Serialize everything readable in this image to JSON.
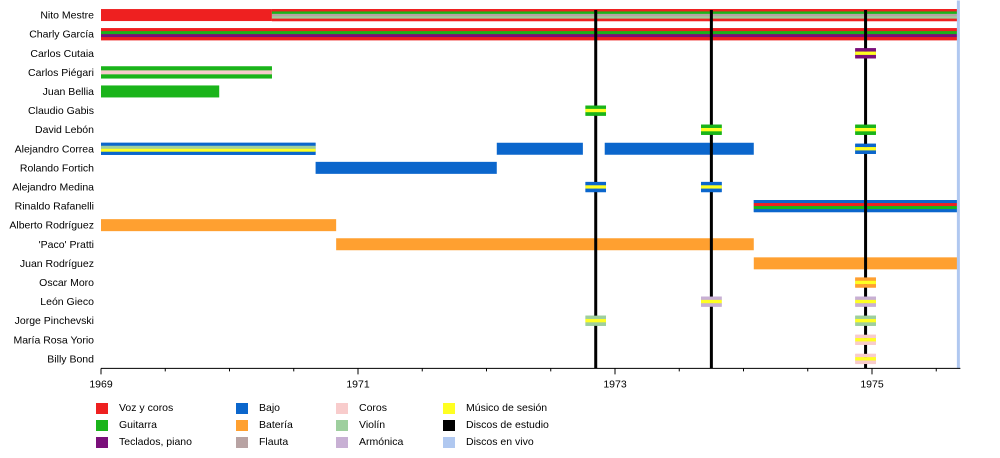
{
  "chart_data": {
    "type": "timeline",
    "x_range": [
      1969.0,
      1975.68
    ],
    "x_ticks": [
      "1969",
      "1971",
      "1973",
      "1975"
    ],
    "colors": {
      "voz": "#ee2020",
      "guitarra": "#1ab41a",
      "teclados": "#7a0f7a",
      "bajo": "#0b66cc",
      "bateria": "#ffa030",
      "flauta": "#b8a3a3",
      "coros": "#f8cccc",
      "violin": "#9ecf9e",
      "armonica": "#c8b0d4",
      "sesion": "#ffff22",
      "estudio": "#000000",
      "vivo": "#b0c8f0"
    },
    "members": [
      {
        "name": "Nito Mestre",
        "spans": [
          {
            "start": 1969.0,
            "end": 1970.33,
            "colors": [
              "voz"
            ]
          },
          {
            "start": 1970.33,
            "end": 1975.68,
            "colors": [
              "voz",
              "guitarra",
              "flauta",
              "violin"
            ]
          }
        ]
      },
      {
        "name": "Charly García",
        "spans": [
          {
            "start": 1969.0,
            "end": 1975.68,
            "colors": [
              "voz",
              "guitarra",
              "teclados"
            ]
          }
        ]
      },
      {
        "name": "Carlos Cutaia",
        "spans": [
          {
            "start": 1974.87,
            "end": 1975.03,
            "colors": [
              "teclados",
              "sesion"
            ]
          }
        ]
      },
      {
        "name": "Carlos Piégari",
        "spans": [
          {
            "start": 1969.0,
            "end": 1970.33,
            "colors": [
              "guitarra",
              "coros"
            ]
          }
        ]
      },
      {
        "name": "Juan Bellia",
        "spans": [
          {
            "start": 1969.0,
            "end": 1969.92,
            "colors": [
              "guitarra"
            ]
          }
        ]
      },
      {
        "name": "Claudio Gabis",
        "spans": [
          {
            "start": 1972.77,
            "end": 1972.93,
            "colors": [
              "guitarra",
              "sesion"
            ]
          }
        ]
      },
      {
        "name": "David Lebón",
        "spans": [
          {
            "start": 1973.67,
            "end": 1973.83,
            "colors": [
              "guitarra",
              "sesion"
            ]
          },
          {
            "start": 1974.87,
            "end": 1975.03,
            "colors": [
              "guitarra",
              "sesion"
            ]
          }
        ]
      },
      {
        "name": "Alejandro Correa",
        "spans": [
          {
            "start": 1969.0,
            "end": 1970.67,
            "colors": [
              "bajo",
              "violin",
              "sesion"
            ]
          },
          {
            "start": 1972.08,
            "end": 1972.75,
            "colors": [
              "bajo"
            ]
          },
          {
            "start": 1972.92,
            "end": 1974.08,
            "colors": [
              "bajo"
            ]
          },
          {
            "start": 1974.87,
            "end": 1975.03,
            "colors": [
              "bajo",
              "sesion"
            ]
          }
        ]
      },
      {
        "name": "Rolando Fortich",
        "spans": [
          {
            "start": 1970.67,
            "end": 1972.08,
            "colors": [
              "bajo"
            ]
          }
        ]
      },
      {
        "name": "Alejandro Medina",
        "spans": [
          {
            "start": 1972.77,
            "end": 1972.93,
            "colors": [
              "bajo",
              "sesion"
            ]
          },
          {
            "start": 1973.67,
            "end": 1973.83,
            "colors": [
              "bajo",
              "sesion"
            ]
          }
        ]
      },
      {
        "name": "Rinaldo Rafanelli",
        "spans": [
          {
            "start": 1974.08,
            "end": 1975.68,
            "colors": [
              "bajo",
              "voz",
              "guitarra"
            ]
          }
        ]
      },
      {
        "name": "Alberto Rodríguez",
        "spans": [
          {
            "start": 1969.0,
            "end": 1970.83,
            "colors": [
              "bateria"
            ]
          }
        ]
      },
      {
        "name": "'Paco' Pratti",
        "spans": [
          {
            "start": 1970.83,
            "end": 1974.08,
            "colors": [
              "bateria"
            ]
          }
        ]
      },
      {
        "name": "Juan Rodríguez",
        "spans": [
          {
            "start": 1974.08,
            "end": 1975.68,
            "colors": [
              "bateria"
            ]
          }
        ]
      },
      {
        "name": "Oscar Moro",
        "spans": [
          {
            "start": 1974.87,
            "end": 1975.03,
            "colors": [
              "bateria",
              "sesion"
            ]
          }
        ]
      },
      {
        "name": "León Gieco",
        "spans": [
          {
            "start": 1973.67,
            "end": 1973.83,
            "colors": [
              "armonica",
              "sesion"
            ]
          },
          {
            "start": 1974.87,
            "end": 1975.03,
            "colors": [
              "armonica",
              "sesion"
            ]
          }
        ]
      },
      {
        "name": "Jorge Pinchevski",
        "spans": [
          {
            "start": 1972.77,
            "end": 1972.93,
            "colors": [
              "violin",
              "sesion"
            ]
          },
          {
            "start": 1974.87,
            "end": 1975.03,
            "colors": [
              "violin",
              "sesion"
            ]
          }
        ]
      },
      {
        "name": "María Rosa Yorio",
        "spans": [
          {
            "start": 1974.87,
            "end": 1975.03,
            "colors": [
              "coros",
              "sesion"
            ]
          }
        ]
      },
      {
        "name": "Billy Bond",
        "spans": [
          {
            "start": 1974.87,
            "end": 1975.03,
            "colors": [
              "coros",
              "sesion"
            ]
          }
        ]
      }
    ],
    "studio_albums": [
      1972.85,
      1973.75,
      1974.95
    ],
    "live_albums": [
      1975.68
    ],
    "legend": [
      {
        "label": "Voz y coros",
        "color": "#ee2020"
      },
      {
        "label": "Guitarra",
        "color": "#1ab41a"
      },
      {
        "label": "Teclados, piano",
        "color": "#7a0f7a"
      },
      {
        "label": "Bajo",
        "color": "#0b66cc"
      },
      {
        "label": "Batería",
        "color": "#ffa030"
      },
      {
        "label": "Flauta",
        "color": "#b8a3a3"
      },
      {
        "label": "Coros",
        "color": "#f8cccc"
      },
      {
        "label": "Violín",
        "color": "#9ecf9e"
      },
      {
        "label": "Armónica",
        "color": "#c8b0d4"
      },
      {
        "label": "Músico de sesión",
        "color": "#ffff22"
      },
      {
        "label": "Discos de estudio",
        "color": "#000000"
      },
      {
        "label": "Discos en vivo",
        "color": "#b0c8f0"
      }
    ]
  }
}
